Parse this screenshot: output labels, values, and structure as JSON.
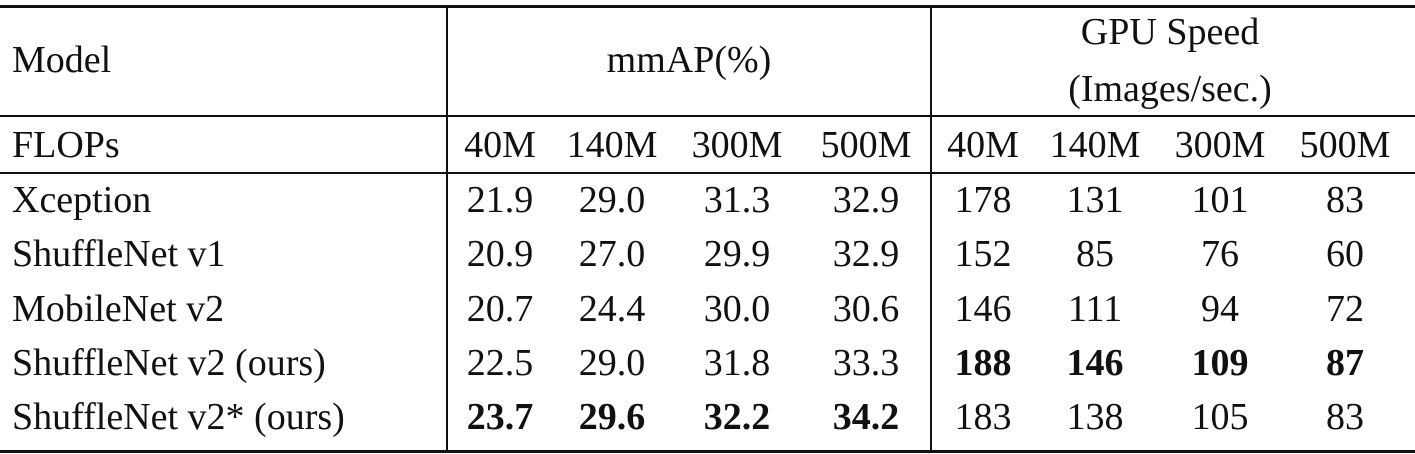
{
  "header": {
    "model": "Model",
    "mmap": "mmAP(%)",
    "gpu_line1": "GPU Speed",
    "gpu_line2": "(Images/sec.)",
    "flops": "FLOPs",
    "mmap_flops": [
      "40M",
      "140M",
      "300M",
      "500M"
    ],
    "gpu_flops": [
      "40M",
      "140M",
      "300M",
      "500M"
    ]
  },
  "table": {
    "rows": [
      {
        "model": "Xception",
        "mmap": [
          "21.9",
          "29.0",
          "31.3",
          "32.9"
        ],
        "gpu": [
          "178",
          "131",
          "101",
          "83"
        ],
        "bold": null
      },
      {
        "model": "ShuffleNet v1",
        "mmap": [
          "20.9",
          "27.0",
          "29.9",
          "32.9"
        ],
        "gpu": [
          "152",
          "85",
          "76",
          "60"
        ],
        "bold": null
      },
      {
        "model": "MobileNet v2",
        "mmap": [
          "20.7",
          "24.4",
          "30.0",
          "30.6"
        ],
        "gpu": [
          "146",
          "111",
          "94",
          "72"
        ],
        "bold": null
      },
      {
        "model": "ShuffleNet v2 (ours)",
        "mmap": [
          "22.5",
          "29.0",
          "31.8",
          "33.3"
        ],
        "gpu": [
          "188",
          "146",
          "109",
          "87"
        ],
        "bold": "gpu"
      },
      {
        "model": "ShuffleNet v2* (ours)",
        "mmap": [
          "23.7",
          "29.6",
          "32.2",
          "34.2"
        ],
        "gpu": [
          "183",
          "138",
          "105",
          "83"
        ],
        "bold": "mmap"
      }
    ]
  }
}
